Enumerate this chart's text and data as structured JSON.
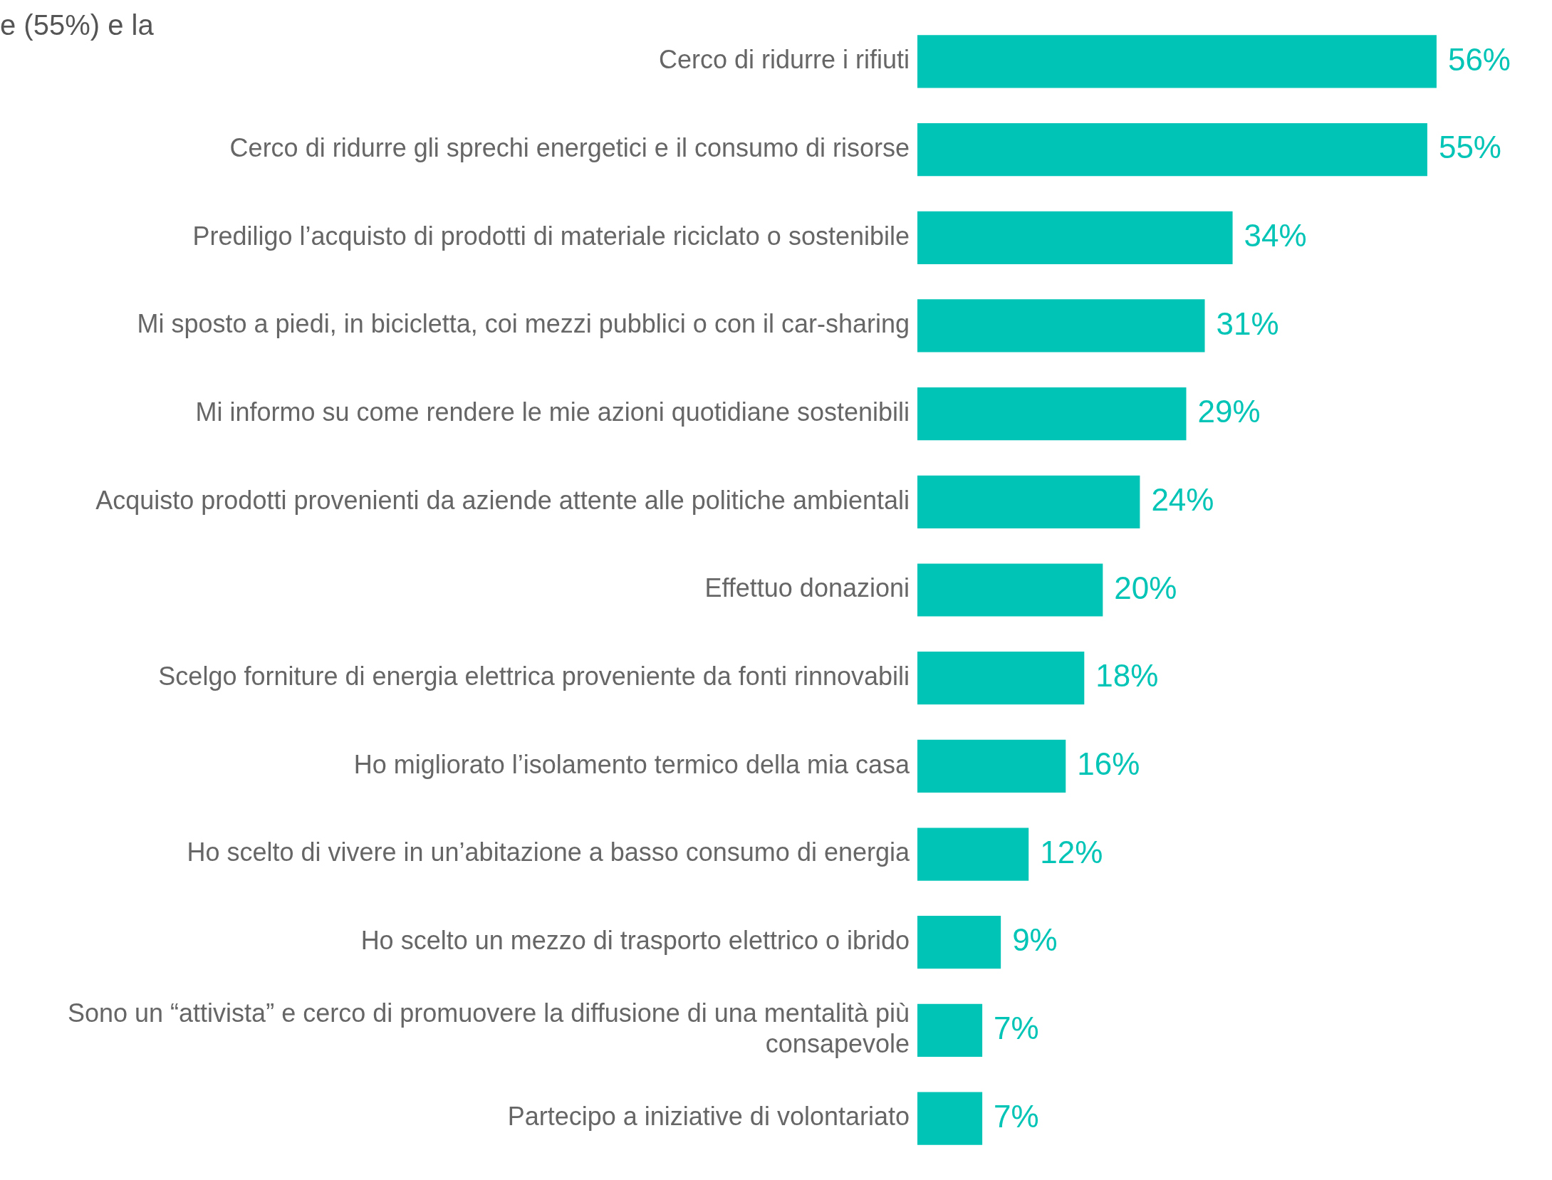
{
  "chart_data": {
    "type": "bar",
    "orientation": "horizontal",
    "categories": [
      "Cerco di ridurre i rifiuti",
      "Cerco di ridurre gli sprechi energetici e il consumo di risorse",
      "Prediligo l’acquisto di prodotti di materiale riciclato o sostenibile",
      "Mi sposto a piedi, in bicicletta, coi mezzi pubblici o con il car-sharing",
      "Mi informo su come rendere le mie azioni quotidiane sostenibili",
      "Acquisto prodotti provenienti da aziende attente alle politiche ambientali",
      "Effettuo donazioni",
      "Scelgo forniture di energia elettrica proveniente da fonti rinnovabili",
      "Ho migliorato l’isolamento termico della mia casa",
      "Ho scelto di vivere in un’abitazione a basso consumo di energia",
      "Ho scelto un mezzo di trasporto elettrico o ibrido",
      "Sono un “attivista” e cerco di promuovere la diffusione di una mentalità più consapevole",
      "Partecipo a iniziative di volontariato"
    ],
    "values": [
      56,
      55,
      34,
      31,
      29,
      24,
      20,
      18,
      16,
      12,
      9,
      7,
      7
    ],
    "value_labels": [
      "56%",
      "55%",
      "34%",
      "31%",
      "29%",
      "24%",
      "20%",
      "18%",
      "16%",
      "12%",
      "9%",
      "7%",
      "7%"
    ],
    "color": "#00c4b6",
    "tick_labels": "y",
    "annotations": [
      "e (55%) e la"
    ]
  }
}
